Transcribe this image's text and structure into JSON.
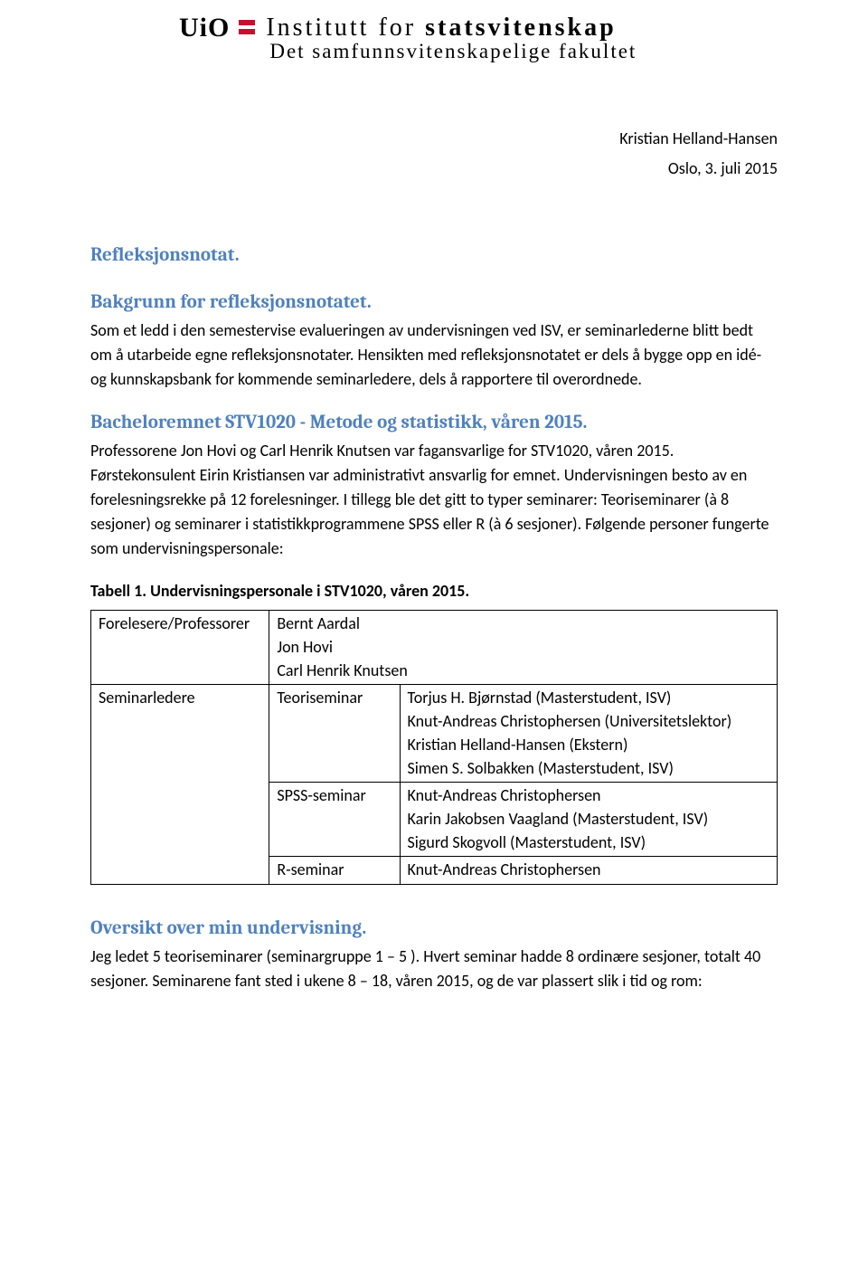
{
  "logo": {
    "mark": "UiO",
    "line1_prefix": "Institutt for ",
    "line1_bold": "statsvitenskap",
    "line2": "Det samfunnsvitenskapelige fakultet",
    "accent_color": "#c8102e"
  },
  "meta": {
    "author": "Kristian Helland-Hansen",
    "date": "Oslo, 3. juli 2015"
  },
  "heading_main": "Refleksjonsnotat.",
  "section_bakgrunn": {
    "title": "Bakgrunn for refleksjonsnotatet.",
    "body": "Som et ledd i den semestervise evalueringen av undervisningen ved ISV, er seminarlederne blitt bedt om å utarbeide egne refleksjonsnotater. Hensikten med refleksjonsnotatet er dels å bygge opp en idé- og kunnskapsbank for kommende seminarledere, dels å rapportere til overordnede."
  },
  "section_emne": {
    "title": "Bacheloremnet STV1020 - Metode og statistikk, våren 2015.",
    "body": "Professorene Jon Hovi og Carl Henrik Knutsen var fagansvarlige for STV1020, våren 2015. Førstekonsulent Eirin Kristiansen var administrativt ansvarlig for emnet. Undervisningen besto av en forelesningsrekke på 12 forelesninger. I tillegg ble det gitt to typer seminarer: Teoriseminarer (à 8 sesjoner) og seminarer i statistikkprogrammene SPSS eller R (à 6 sesjoner). Følgende personer fungerte som undervisningspersonale:"
  },
  "table1": {
    "caption": "Tabell 1. Undervisningspersonale i STV1020, våren 2015.",
    "col_widths": [
      "26%",
      "19%",
      "55%"
    ],
    "row1_label": "Forelesere/Professorer",
    "row1_names": "Bernt Aardal\nJon Hovi\nCarl Henrik Knutsen",
    "row2_label": "Seminarledere",
    "teori_label": "Teoriseminar",
    "teori_names": "Torjus H. Bjørnstad (Masterstudent, ISV)\nKnut-Andreas Christophersen (Universitetslektor)\nKristian Helland-Hansen (Ekstern)\nSimen S. Solbakken (Masterstudent, ISV)",
    "spss_label": "SPSS-seminar",
    "spss_names": "Knut-Andreas Christophersen\nKarin Jakobsen Vaagland (Masterstudent, ISV)\nSigurd Skogvoll (Masterstudent, ISV)",
    "r_label": "R-seminar",
    "r_names": "Knut-Andreas Christophersen"
  },
  "section_oversikt": {
    "title": "Oversikt over min undervisning.",
    "body": "Jeg ledet 5 teoriseminarer (seminargruppe 1 – 5 ). Hvert seminar hadde 8 ordinære sesjoner, totalt 40 sesjoner. Seminarene fant sted i ukene 8 – 18, våren 2015, og de var plassert slik i tid og rom:"
  },
  "colors": {
    "heading": "#4f81bd",
    "text": "#000000",
    "background": "#ffffff"
  }
}
